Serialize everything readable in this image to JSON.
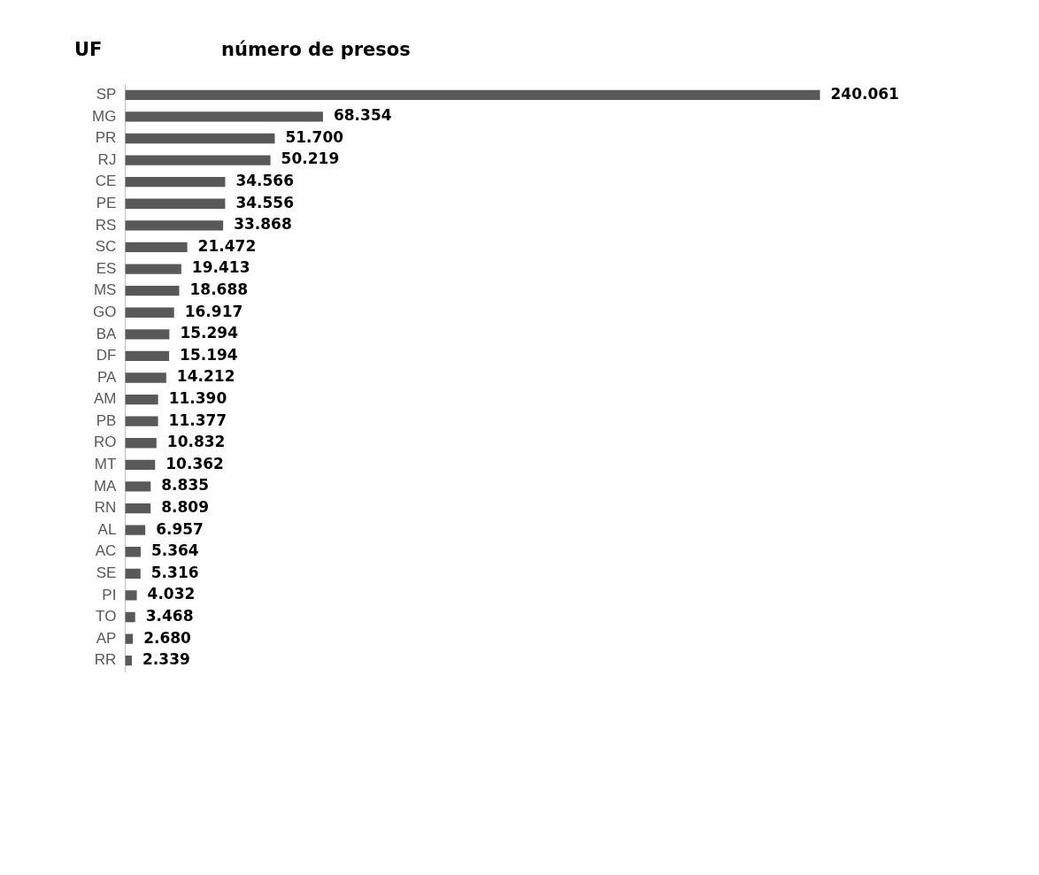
{
  "chart_data": {
    "type": "bar",
    "orientation": "horizontal",
    "title": "número de presos",
    "ylabel": "UF",
    "color": "#595959",
    "legend": false,
    "categories": [
      "SP",
      "MG",
      "PR",
      "RJ",
      "CE",
      "PE",
      "RS",
      "SC",
      "ES",
      "MS",
      "GO",
      "BA",
      "DF",
      "PA",
      "AM",
      "PB",
      "RO",
      "MT",
      "MA",
      "RN",
      "AL",
      "AC",
      "SE",
      "PI",
      "TO",
      "AP",
      "RR"
    ],
    "values": [
      240061,
      68354,
      51700,
      50219,
      34566,
      34556,
      33868,
      21472,
      19413,
      18688,
      16917,
      15294,
      15194,
      14212,
      11390,
      11377,
      10832,
      10362,
      8835,
      8809,
      6957,
      5364,
      5316,
      4032,
      3468,
      2680,
      2339
    ],
    "value_labels": [
      "240.061",
      "68.354",
      "51.700",
      "50.219",
      "34.566",
      "34.556",
      "33.868",
      "21.472",
      "19.413",
      "18.688",
      "16.917",
      "15.294",
      "15.194",
      "14.212",
      "11.390",
      "11.377",
      "10.832",
      "10.362",
      "8.835",
      "8.809",
      "6.957",
      "5.364",
      "5.316",
      "4.032",
      "3.468",
      "2.680",
      "2.339"
    ]
  }
}
